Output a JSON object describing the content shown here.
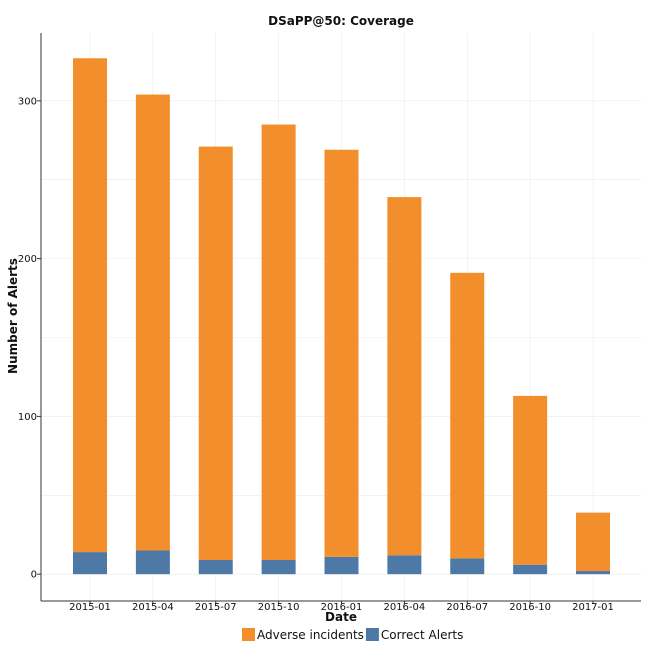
{
  "chart_data": {
    "type": "bar",
    "stacked": true,
    "title": "DSaPP@50: Coverage",
    "xlabel": "Date",
    "ylabel": "Number of Alerts",
    "categories": [
      "2015-01",
      "2015-04",
      "2015-07",
      "2015-10",
      "2016-01",
      "2016-04",
      "2016-07",
      "2016-10",
      "2017-01"
    ],
    "series": [
      {
        "name": "Correct Alerts",
        "color": "#4e79a7",
        "values": [
          14,
          15,
          9,
          9,
          11,
          12,
          10,
          6,
          2
        ]
      },
      {
        "name": "Adverse incidents",
        "color": "#f28e2b",
        "values": [
          313,
          289,
          262,
          276,
          258,
          227,
          181,
          107,
          37
        ]
      }
    ],
    "ylim": [
      -17,
      343
    ],
    "yticks": [
      0,
      100,
      200,
      300
    ],
    "grid": true,
    "legend_position": "bottom"
  }
}
